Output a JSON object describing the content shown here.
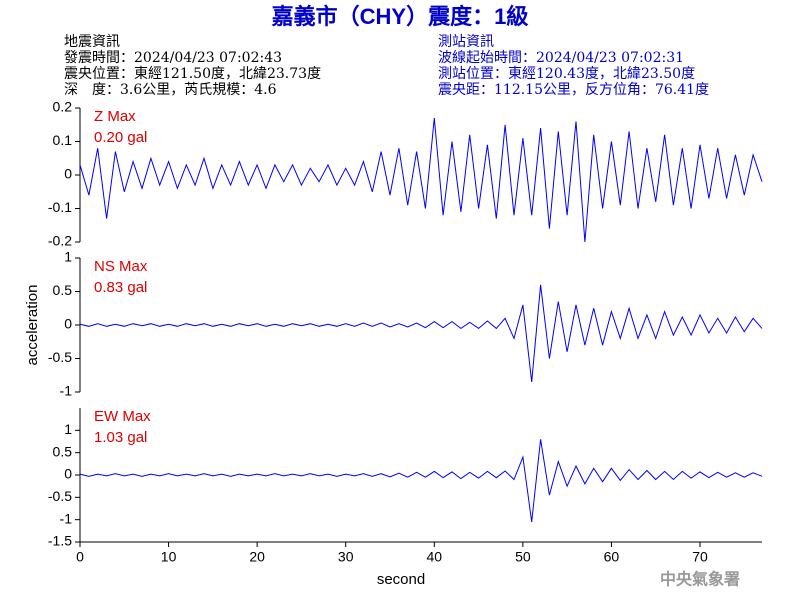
{
  "header": {
    "title": "嘉義市（CHY）震度：1級",
    "left": [
      "地震資訊",
      "發震時間：2024/04/23 07:02:43",
      "震央位置：東經121.50度，北緯23.73度",
      "深　度：3.6公里，芮氏規模：4.6"
    ],
    "right": [
      "測站資訊",
      "波線起始時間：2024/04/23 07:02:31",
      "測站位置：東經120.43度，北緯23.50度",
      "震央距：112.15公里，反方位角：76.41度"
    ],
    "watermark": "中央氣象署"
  },
  "chart_data": [
    {
      "type": "line",
      "annotation": [
        "Z Max",
        "0.20 gal"
      ],
      "color": "#0000ff",
      "xlim": [
        0,
        77
      ],
      "ylim": [
        -0.2,
        0.2
      ],
      "yticks": [
        -0.2,
        -0.1,
        0,
        0.1,
        0.2
      ],
      "x": [
        0,
        1,
        2,
        3,
        4,
        5,
        6,
        7,
        8,
        9,
        10,
        11,
        12,
        13,
        14,
        15,
        16,
        17,
        18,
        19,
        20,
        21,
        22,
        23,
        24,
        25,
        26,
        27,
        28,
        29,
        30,
        31,
        32,
        33,
        34,
        35,
        36,
        37,
        38,
        39,
        40,
        41,
        42,
        43,
        44,
        45,
        46,
        47,
        48,
        49,
        50,
        51,
        52,
        53,
        54,
        55,
        56,
        57,
        58,
        59,
        60,
        61,
        62,
        63,
        64,
        65,
        66,
        67,
        68,
        69,
        70,
        71,
        72,
        73,
        74,
        75,
        76,
        77
      ],
      "values": [
        0.03,
        -0.06,
        0.08,
        -0.13,
        0.07,
        -0.05,
        0.04,
        -0.04,
        0.05,
        -0.03,
        0.04,
        -0.04,
        0.03,
        -0.03,
        0.05,
        -0.04,
        0.03,
        -0.03,
        0.04,
        -0.03,
        0.03,
        -0.04,
        0.03,
        -0.02,
        0.03,
        -0.03,
        0.02,
        -0.02,
        0.03,
        -0.03,
        0.02,
        -0.03,
        0.04,
        -0.05,
        0.07,
        -0.06,
        0.08,
        -0.09,
        0.07,
        -0.1,
        0.17,
        -0.12,
        0.1,
        -0.11,
        0.12,
        -0.1,
        0.09,
        -0.13,
        0.15,
        -0.12,
        0.11,
        -0.12,
        0.14,
        -0.16,
        0.13,
        -0.12,
        0.16,
        -0.2,
        0.12,
        -0.1,
        0.1,
        -0.09,
        0.13,
        -0.1,
        0.08,
        -0.08,
        0.12,
        -0.09,
        0.08,
        -0.1,
        0.09,
        -0.07,
        0.08,
        -0.07,
        0.06,
        -0.06,
        0.06,
        -0.02
      ]
    },
    {
      "type": "line",
      "annotation": [
        "NS Max",
        "0.83 gal"
      ],
      "color": "#0000ff",
      "xlim": [
        0,
        77
      ],
      "ylim": [
        -1,
        1
      ],
      "yticks": [
        -1,
        -0.5,
        0,
        0.5,
        1
      ],
      "ylabel": "acceleration",
      "x": [
        0,
        1,
        2,
        3,
        4,
        5,
        6,
        7,
        8,
        9,
        10,
        11,
        12,
        13,
        14,
        15,
        16,
        17,
        18,
        19,
        20,
        21,
        22,
        23,
        24,
        25,
        26,
        27,
        28,
        29,
        30,
        31,
        32,
        33,
        34,
        35,
        36,
        37,
        38,
        39,
        40,
        41,
        42,
        43,
        44,
        45,
        46,
        47,
        48,
        49,
        50,
        51,
        52,
        53,
        54,
        55,
        56,
        57,
        58,
        59,
        60,
        61,
        62,
        63,
        64,
        65,
        66,
        67,
        68,
        69,
        70,
        71,
        72,
        73,
        74,
        75,
        76,
        77
      ],
      "values": [
        0.01,
        -0.02,
        0.02,
        -0.02,
        0.01,
        -0.02,
        0.02,
        -0.01,
        0.02,
        -0.02,
        0.01,
        -0.02,
        0.02,
        -0.01,
        0.02,
        -0.02,
        0.01,
        -0.02,
        0.02,
        -0.01,
        0.02,
        -0.02,
        0.01,
        -0.02,
        0.02,
        -0.01,
        0.02,
        -0.02,
        0.01,
        -0.02,
        0.02,
        -0.02,
        0.03,
        -0.02,
        0.03,
        -0.03,
        0.02,
        -0.03,
        0.03,
        -0.04,
        0.05,
        -0.04,
        0.05,
        -0.05,
        0.04,
        -0.05,
        0.06,
        -0.05,
        0.1,
        -0.2,
        0.3,
        -0.85,
        0.6,
        -0.5,
        0.35,
        -0.4,
        0.3,
        -0.3,
        0.25,
        -0.3,
        0.2,
        -0.2,
        0.25,
        -0.2,
        0.15,
        -0.2,
        0.2,
        -0.15,
        0.12,
        -0.15,
        0.15,
        -0.12,
        0.1,
        -0.12,
        0.12,
        -0.1,
        0.1,
        -0.05
      ]
    },
    {
      "type": "line",
      "annotation": [
        "EW Max",
        "1.03 gal"
      ],
      "color": "#0000ff",
      "xlim": [
        0,
        77
      ],
      "ylim": [
        -1.5,
        1.5
      ],
      "yticks": [
        -1.5,
        -1,
        -0.5,
        0,
        0.5,
        1
      ],
      "xticks": [
        0,
        10,
        20,
        30,
        40,
        50,
        60,
        70
      ],
      "xlabel": "second",
      "x": [
        0,
        1,
        2,
        3,
        4,
        5,
        6,
        7,
        8,
        9,
        10,
        11,
        12,
        13,
        14,
        15,
        16,
        17,
        18,
        19,
        20,
        21,
        22,
        23,
        24,
        25,
        26,
        27,
        28,
        29,
        30,
        31,
        32,
        33,
        34,
        35,
        36,
        37,
        38,
        39,
        40,
        41,
        42,
        43,
        44,
        45,
        46,
        47,
        48,
        49,
        50,
        51,
        52,
        53,
        54,
        55,
        56,
        57,
        58,
        59,
        60,
        61,
        62,
        63,
        64,
        65,
        66,
        67,
        68,
        69,
        70,
        71,
        72,
        73,
        74,
        75,
        76,
        77
      ],
      "values": [
        0.02,
        -0.03,
        0.02,
        -0.02,
        0.03,
        -0.02,
        0.02,
        -0.03,
        0.02,
        -0.02,
        0.03,
        -0.02,
        0.02,
        -0.02,
        0.03,
        -0.02,
        0.02,
        -0.03,
        0.02,
        -0.02,
        0.02,
        -0.02,
        0.03,
        -0.02,
        0.02,
        -0.02,
        0.03,
        -0.02,
        0.02,
        -0.03,
        0.02,
        -0.02,
        0.03,
        -0.03,
        0.03,
        -0.04,
        0.04,
        -0.05,
        0.06,
        -0.05,
        0.08,
        -0.06,
        0.07,
        -0.08,
        0.06,
        -0.07,
        0.08,
        -0.06,
        0.09,
        -0.1,
        0.4,
        -1.05,
        0.8,
        -0.45,
        0.3,
        -0.25,
        0.2,
        -0.2,
        0.15,
        -0.15,
        0.15,
        -0.12,
        0.12,
        -0.1,
        0.1,
        -0.1,
        0.08,
        -0.1,
        0.08,
        -0.07,
        0.07,
        -0.06,
        0.06,
        -0.05,
        0.05,
        -0.05,
        0.05,
        -0.03
      ]
    }
  ]
}
